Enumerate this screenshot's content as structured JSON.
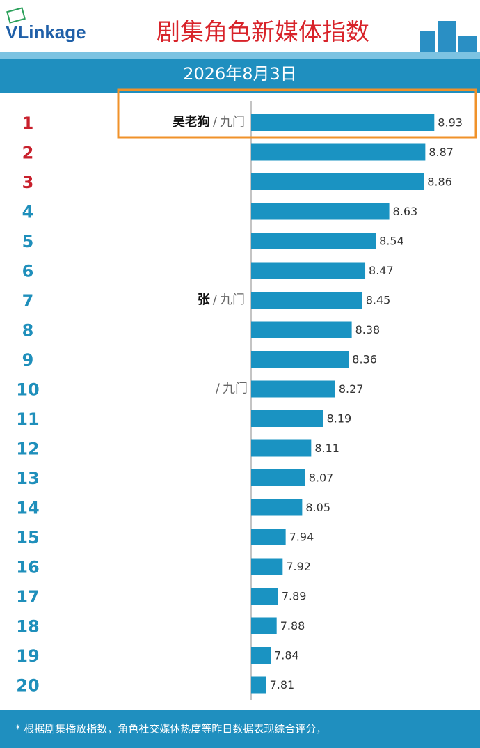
{
  "chart_data": {
    "type": "bar",
    "brand": "VLinkage",
    "title": "剧集角色新媒体指数",
    "subtitle": "2026年8月3日",
    "ranks": [
      1,
      2,
      3,
      4,
      5,
      6,
      7,
      8,
      9,
      10,
      11,
      12,
      13,
      14,
      15,
      16,
      17,
      18,
      19,
      20
    ],
    "categories": [
      "吴老狗",
      null,
      null,
      null,
      null,
      null,
      "张",
      null,
      null,
      null,
      null,
      null,
      null,
      null,
      null,
      null,
      null,
      null,
      null,
      null
    ],
    "dramas": [
      "九门",
      null,
      null,
      null,
      null,
      null,
      "九门",
      null,
      null,
      "九门",
      null,
      null,
      null,
      null,
      null,
      null,
      null,
      null,
      null,
      null
    ],
    "values": [
      8.93,
      8.87,
      8.86,
      8.63,
      8.54,
      8.47,
      8.45,
      8.38,
      8.36,
      8.27,
      8.19,
      8.11,
      8.07,
      8.05,
      7.94,
      7.92,
      7.89,
      7.88,
      7.84,
      7.81
    ],
    "xlim": [
      7.71,
      9.1
    ],
    "color": "#1a93c2",
    "top_rank_color": "#c8202c",
    "rank_color": "#1f8fbb",
    "footnote": "* 根据剧集播放指数，角色社交媒体热度等昨日数据表现综合评分，"
  }
}
